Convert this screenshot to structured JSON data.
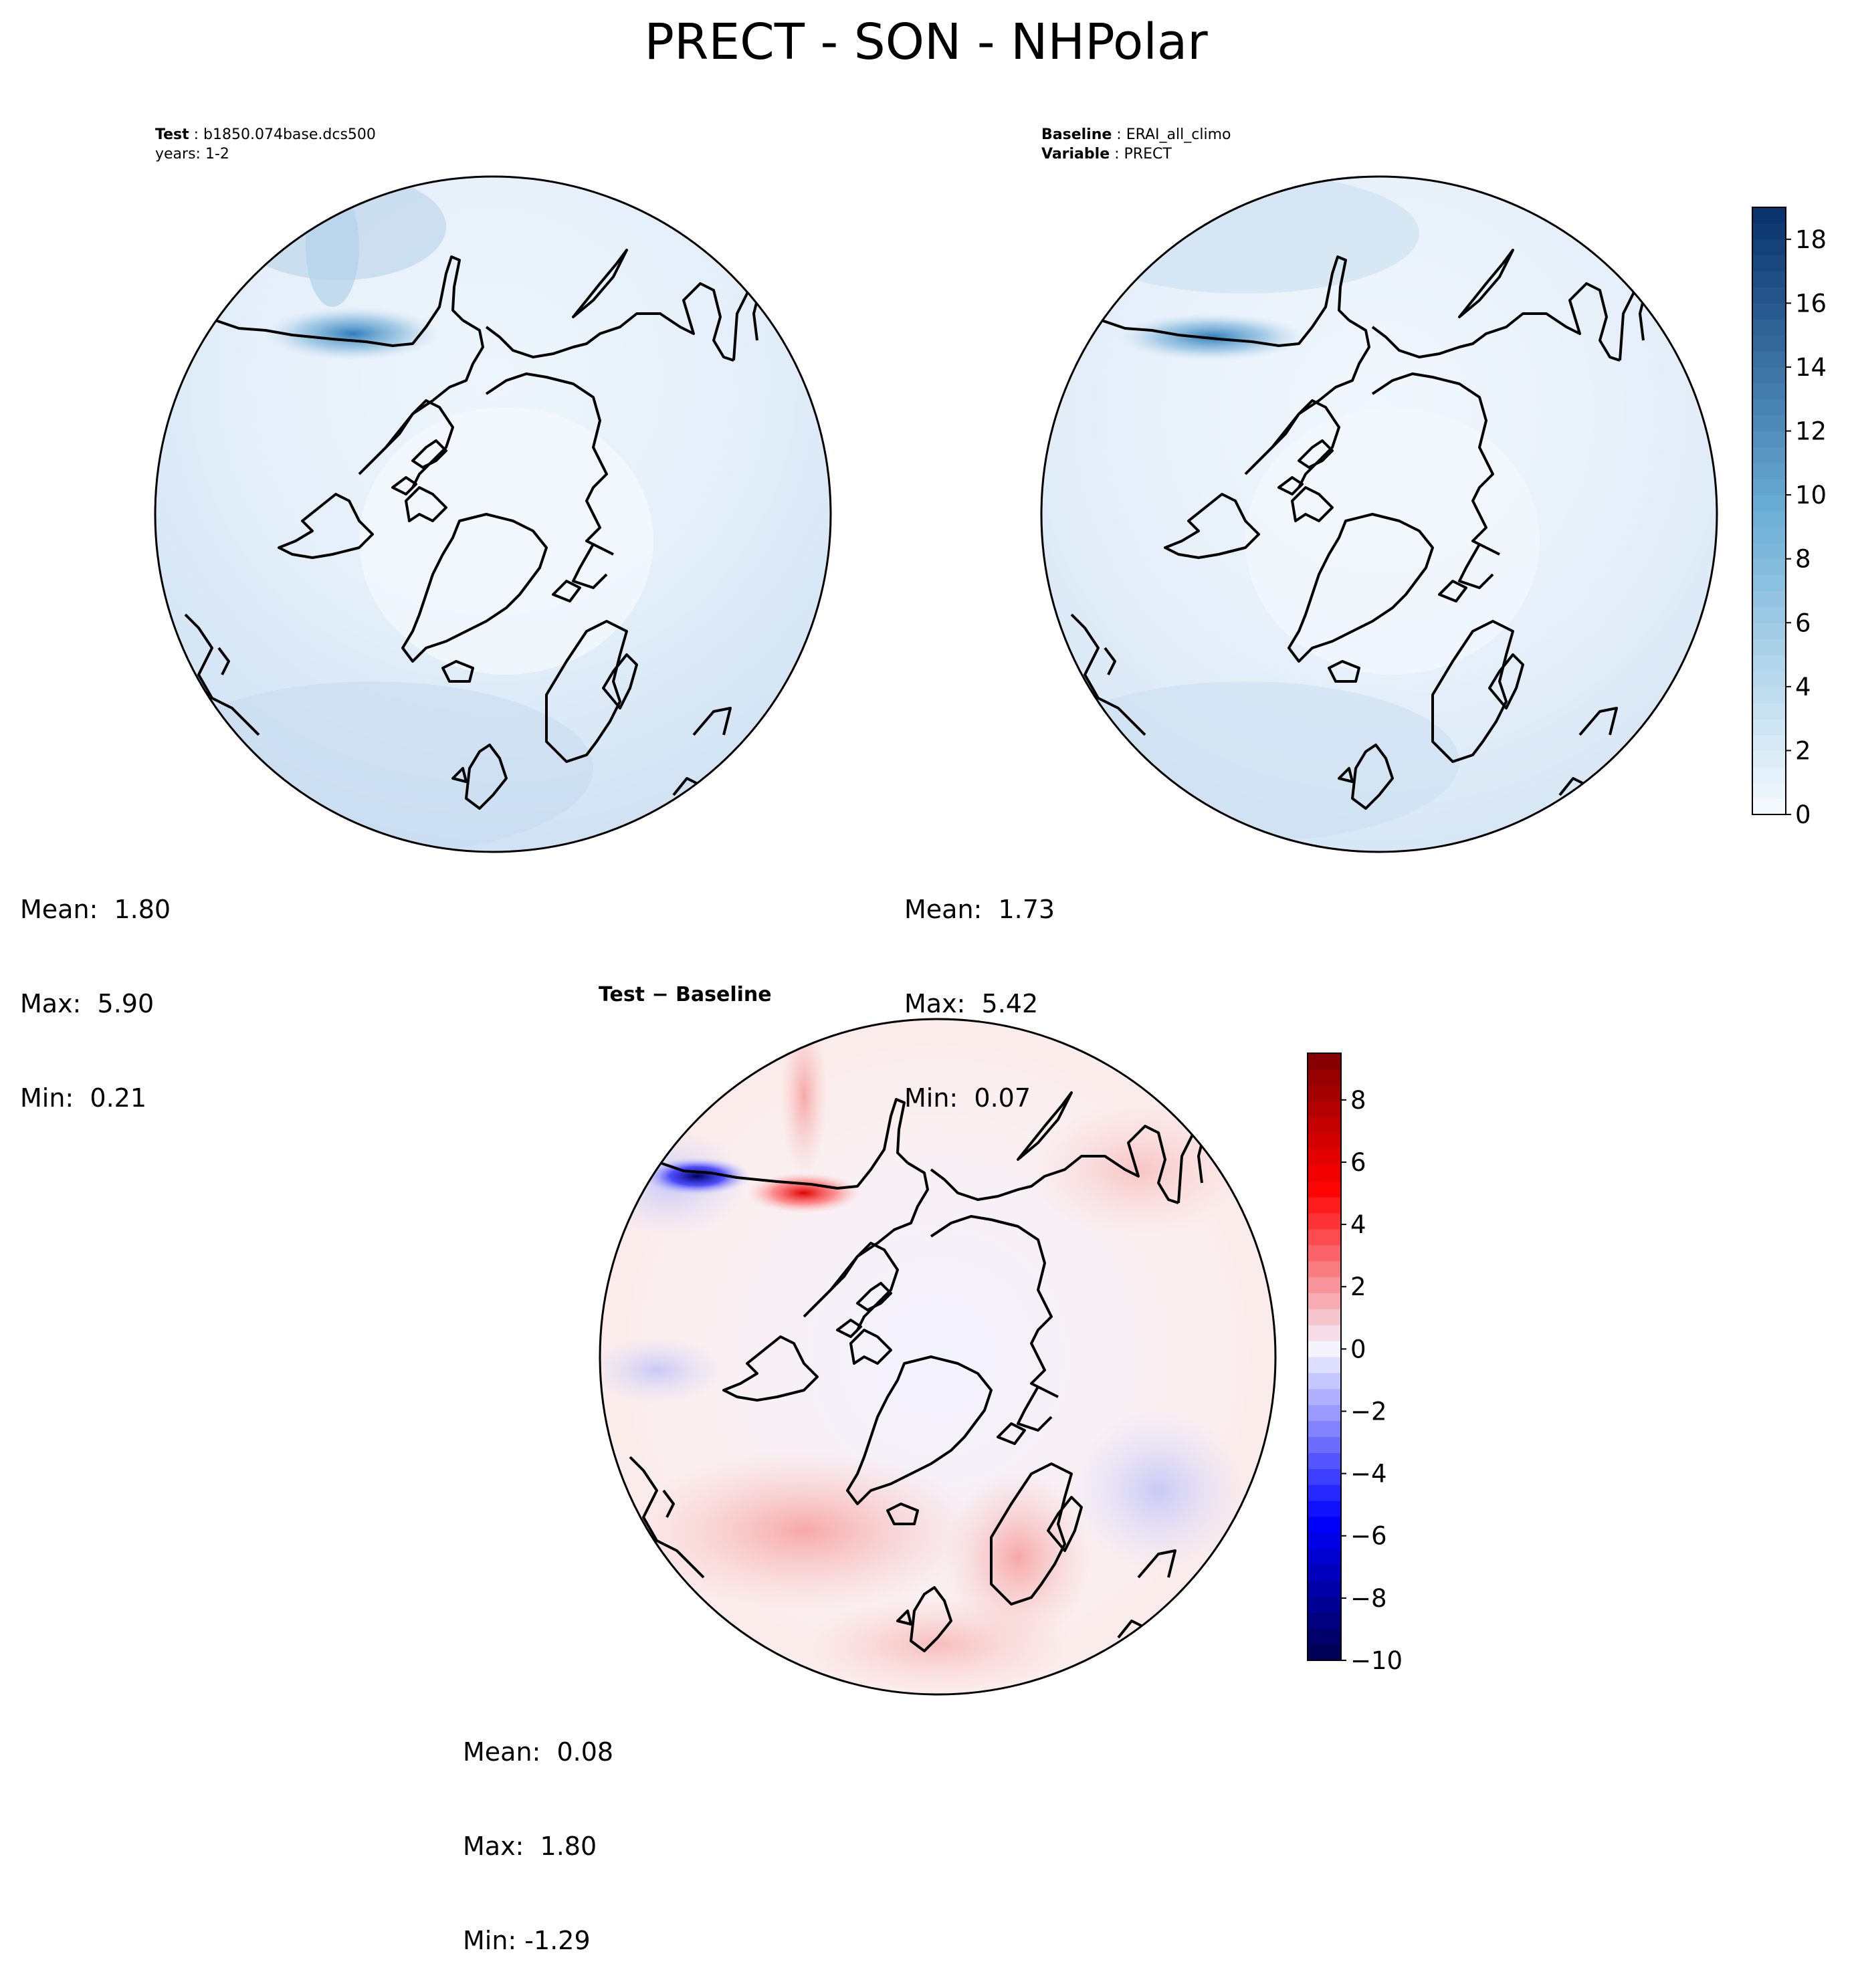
{
  "title": "PRECT - SON - NHPolar",
  "panels": {
    "test": {
      "label_key": "Test",
      "label_value": "b1850.074base.dcs500",
      "years": "years: 1-2",
      "stats": {
        "mean": "Mean:  1.80",
        "max": "Max:  5.90",
        "min": "Min:  0.21"
      }
    },
    "baseline": {
      "label_key": "Baseline",
      "label_value": "ERAI_all_climo",
      "variable_key": "Variable",
      "variable_value": "PRECT",
      "stats": {
        "mean": "Mean:  1.73",
        "max": "Max:  5.42",
        "min": "Min:  0.07"
      }
    },
    "diff": {
      "title": "Test − Baseline",
      "stats": {
        "mean": "Mean:  0.08",
        "max": "Max:  1.80",
        "min": "Min: -1.29"
      }
    }
  },
  "chart_data": [
    {
      "type": "heatmap",
      "projection": "north polar stereographic",
      "panel": "test",
      "colormap": "Blues",
      "value_range": [
        0,
        19
      ],
      "stats": {
        "mean": 1.8,
        "max": 5.9,
        "min": 0.21
      }
    },
    {
      "type": "heatmap",
      "projection": "north polar stereographic",
      "panel": "baseline",
      "colormap": "Blues",
      "value_range": [
        0,
        19
      ],
      "stats": {
        "mean": 1.73,
        "max": 5.42,
        "min": 0.07
      }
    },
    {
      "type": "heatmap",
      "projection": "north polar stereographic",
      "panel": "diff",
      "colormap": "seismic",
      "value_range": [
        -10,
        9.5
      ],
      "stats": {
        "mean": 0.08,
        "max": 1.8,
        "min": -1.29
      }
    }
  ],
  "colorbars": {
    "blues": {
      "ticks": [
        "0",
        "2",
        "4",
        "6",
        "8",
        "10",
        "12",
        "14",
        "16",
        "18"
      ],
      "values": [
        0,
        2,
        4,
        6,
        8,
        10,
        12,
        14,
        16,
        18
      ],
      "range": [
        0,
        19
      ]
    },
    "diff": {
      "ticks": [
        "−10",
        "−8",
        "−6",
        "−4",
        "−2",
        "0",
        "2",
        "4",
        "6",
        "8"
      ],
      "values": [
        -10,
        -8,
        -6,
        -4,
        -2,
        0,
        2,
        4,
        6,
        8
      ],
      "range": [
        -10,
        9.5
      ]
    }
  },
  "colors": {
    "blues_low": "#f7fbff",
    "blues_high": "#08306b",
    "diff_low": "#00004d",
    "diff_mid": "#f4f4ff",
    "diff_high": "#7f0000",
    "coastline": "#000000"
  }
}
